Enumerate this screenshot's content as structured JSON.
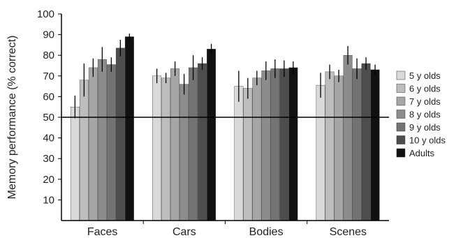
{
  "chart_data": {
    "type": "bar",
    "title": "",
    "xlabel": "",
    "ylabel": "Memory performance (% correct)",
    "ylim": [
      0,
      100
    ],
    "yticks": [
      10,
      20,
      30,
      40,
      50,
      60,
      70,
      80,
      90,
      100
    ],
    "reference_line": 50,
    "legend_position": "right",
    "categories": [
      "Faces",
      "Cars",
      "Bodies",
      "Scenes"
    ],
    "series": [
      {
        "name": "5 y olds",
        "color": "#d9d9d9",
        "values": [
          55,
          70,
          65,
          65.5
        ],
        "errors": [
          5.5,
          3.5,
          7.5,
          6
        ]
      },
      {
        "name": "6 y olds",
        "color": "#bdbdbd",
        "values": [
          68,
          69,
          64,
          72
        ],
        "errors": [
          8,
          2.5,
          5,
          3.5
        ]
      },
      {
        "name": "7 y olds",
        "color": "#a6a6a6",
        "values": [
          74,
          73.5,
          69,
          70
        ],
        "errors": [
          4.5,
          3.5,
          3.5,
          3
        ]
      },
      {
        "name": "8 y olds",
        "color": "#8c8c8c",
        "values": [
          78,
          66,
          72.5,
          80
        ],
        "errors": [
          6,
          5,
          4.5,
          4.5
        ]
      },
      {
        "name": "9 y olds",
        "color": "#737373",
        "values": [
          75.5,
          74,
          73.5,
          73.5
        ],
        "errors": [
          3.5,
          6,
          4.5,
          5
        ]
      },
      {
        "name": "10 y olds",
        "color": "#4d4d4d",
        "values": [
          83.5,
          76,
          73.5,
          76
        ],
        "errors": [
          4,
          3,
          4,
          3
        ]
      },
      {
        "name": "Adults",
        "color": "#111111",
        "values": [
          89,
          83,
          74,
          73
        ],
        "errors": [
          1.5,
          2.5,
          3,
          2.5
        ]
      }
    ]
  }
}
